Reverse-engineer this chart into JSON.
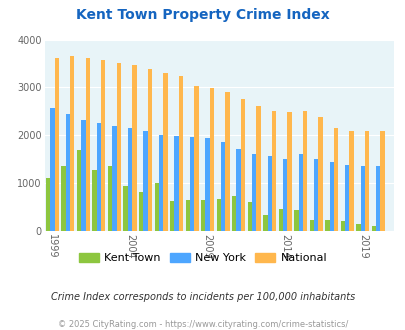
{
  "title": "Kent Town Property Crime Index",
  "kent_town_years": [
    1999,
    2000,
    2001,
    2002,
    2003,
    2004,
    2005,
    2006,
    2007,
    2008,
    2009,
    2010,
    2011,
    2012,
    2013,
    2014,
    2015,
    2016,
    2017,
    2018,
    2019,
    2020
  ],
  "kent_town_vals": [
    1100,
    1350,
    1700,
    1280,
    1350,
    950,
    820,
    1010,
    620,
    640,
    640,
    660,
    730,
    600,
    340,
    450,
    430,
    240,
    220,
    200,
    150,
    100
  ],
  "new_york_years": [
    1999,
    2000,
    2001,
    2002,
    2003,
    2004,
    2005,
    2006,
    2007,
    2008,
    2009,
    2010,
    2011,
    2012,
    2013,
    2014,
    2015,
    2016,
    2017,
    2018,
    2019,
    2020
  ],
  "new_york_vals": [
    2580,
    2440,
    2330,
    2260,
    2200,
    2150,
    2080,
    2010,
    1980,
    1960,
    1950,
    1870,
    1720,
    1610,
    1560,
    1500,
    1600,
    1500,
    1450,
    1370,
    1350,
    1360
  ],
  "national_years": [
    1999,
    2000,
    2001,
    2002,
    2003,
    2004,
    2005,
    2006,
    2007,
    2008,
    2009,
    2010,
    2011,
    2012,
    2013,
    2014,
    2015,
    2016,
    2017,
    2018,
    2019,
    2020
  ],
  "national_vals": [
    3620,
    3660,
    3620,
    3580,
    3520,
    3460,
    3380,
    3310,
    3240,
    3040,
    2980,
    2910,
    2750,
    2620,
    2510,
    2480,
    2500,
    2390,
    2160,
    2100,
    2090,
    2090
  ],
  "kent_town_color": "#8dc63f",
  "new_york_color": "#4da6ff",
  "national_color": "#ffb74d",
  "bg_color": "#e8f4f8",
  "title_color": "#1565c0",
  "ylim": [
    0,
    4000
  ],
  "yticks": [
    0,
    1000,
    2000,
    3000,
    4000
  ],
  "xtick_labels": [
    "1999",
    "2004",
    "2009",
    "2014",
    "2019"
  ],
  "xtick_pos": [
    1999,
    2004,
    2009,
    2014,
    2019
  ],
  "bar_width": 0.28,
  "legend_labels": [
    "Kent Town",
    "New York",
    "National"
  ],
  "footnote": "Crime Index corresponds to incidents per 100,000 inhabitants",
  "copyright": "© 2025 CityRating.com - https://www.cityrating.com/crime-statistics/"
}
